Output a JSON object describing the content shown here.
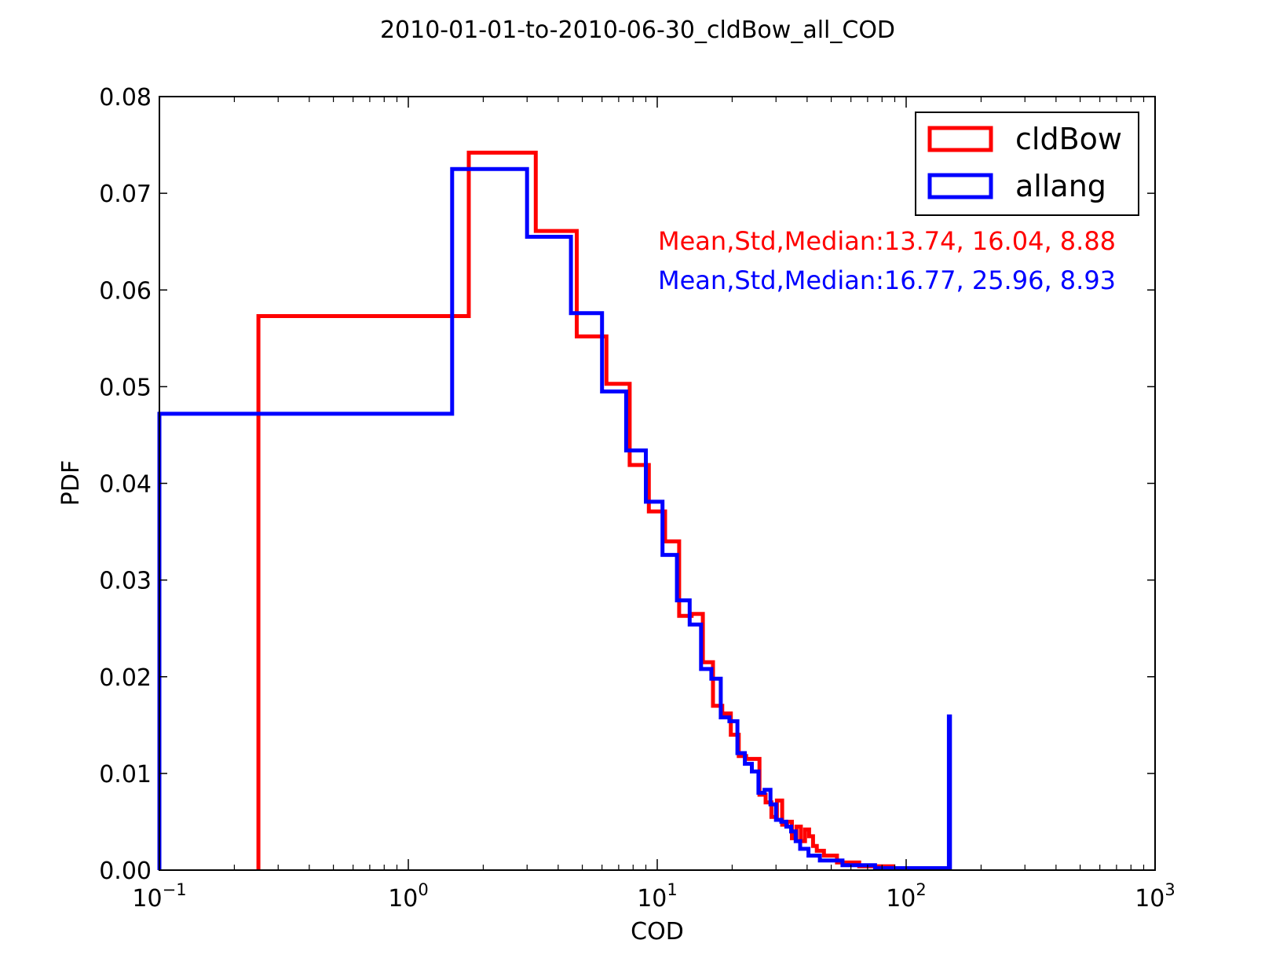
{
  "chart_data": {
    "type": "line",
    "title": "2010-01-01-to-2010-06-30_cldBow_all_COD",
    "xlabel": "COD",
    "ylabel": "PDF",
    "xscale": "log",
    "xlim": [
      0.1,
      1000
    ],
    "ylim": [
      0.0,
      0.08
    ],
    "grid": false,
    "legend_position": "top-right",
    "x_ticks": [
      {
        "value": 0.1,
        "base": "10",
        "exp": "−1"
      },
      {
        "value": 1,
        "base": "10",
        "exp": "0"
      },
      {
        "value": 10,
        "base": "10",
        "exp": "1"
      },
      {
        "value": 100,
        "base": "10",
        "exp": "2"
      },
      {
        "value": 1000,
        "base": "10",
        "exp": "3"
      }
    ],
    "y_ticks": [
      {
        "value": 0.0,
        "label": "0.00"
      },
      {
        "value": 0.01,
        "label": "0.01"
      },
      {
        "value": 0.02,
        "label": "0.02"
      },
      {
        "value": 0.03,
        "label": "0.03"
      },
      {
        "value": 0.04,
        "label": "0.04"
      },
      {
        "value": 0.05,
        "label": "0.05"
      },
      {
        "value": 0.06,
        "label": "0.06"
      },
      {
        "value": 0.07,
        "label": "0.07"
      },
      {
        "value": 0.08,
        "label": "0.08"
      }
    ],
    "series": [
      {
        "name": "cldBow",
        "color": "#ff0000",
        "style": "step-histogram",
        "bin_edges": [
          0.25,
          1.75,
          3.25,
          4.75,
          6.25,
          7.75,
          9.25,
          10.75,
          12.25,
          13.75,
          15.25,
          16.75,
          18.25,
          19.75,
          21.25,
          22.75,
          25.75,
          27.25,
          28.75,
          30.25,
          31.75,
          33.25,
          34.75,
          36.25,
          37.75,
          39.25,
          40.75,
          42.25,
          43.75,
          46.75,
          52.75,
          64.75,
          88.75,
          148.75
        ],
        "values": [
          0.0573,
          0.0742,
          0.0661,
          0.0552,
          0.0503,
          0.0419,
          0.0371,
          0.034,
          0.0263,
          0.0265,
          0.0215,
          0.017,
          0.0162,
          0.014,
          0.0118,
          0.0115,
          0.0078,
          0.007,
          0.0055,
          0.0072,
          0.0047,
          0.005,
          0.0033,
          0.0045,
          0.003,
          0.0042,
          0.0035,
          0.0025,
          0.002,
          0.0015,
          0.0008,
          0.0004,
          0.0002
        ]
      },
      {
        "name": "allang",
        "color": "#0000ff",
        "style": "step-histogram",
        "bin_edges": [
          0.1,
          1.5,
          3.0,
          4.5,
          6.0,
          7.5,
          9.0,
          10.5,
          12.0,
          13.5,
          15.0,
          16.5,
          18.0,
          19.5,
          21.0,
          22.5,
          24.0,
          25.5,
          27.0,
          28.5,
          30.0,
          31.5,
          33.0,
          34.5,
          36.0,
          37.5,
          40.5,
          45.0,
          55.5,
          75.0,
          148.5,
          150.0
        ],
        "values": [
          0.0472,
          0.0725,
          0.0655,
          0.0576,
          0.0495,
          0.0434,
          0.0381,
          0.0326,
          0.0279,
          0.0254,
          0.0208,
          0.0198,
          0.0158,
          0.0154,
          0.0121,
          0.011,
          0.0102,
          0.008,
          0.0083,
          0.0068,
          0.0052,
          0.005,
          0.0045,
          0.004,
          0.003,
          0.0022,
          0.0015,
          0.001,
          0.0005,
          0.0002,
          0.0159
        ]
      }
    ],
    "annotations": [
      {
        "text": "Mean,Std,Median:13.74, 16.04, 8.88",
        "color": "#ff0000"
      },
      {
        "text": "Mean,Std,Median:16.77, 25.96, 8.93",
        "color": "#0000ff"
      }
    ]
  }
}
